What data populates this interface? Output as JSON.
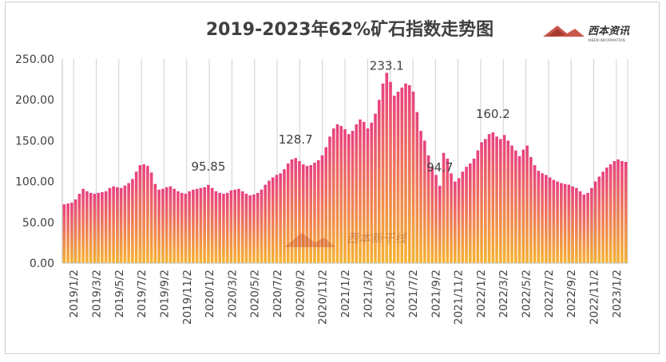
{
  "chart_data": {
    "type": "bar",
    "title": "2019-2023年62%矿石指数走势图",
    "logo_text": "西本资讯",
    "logo_subtext": "XIBEN INFORMATION",
    "watermark_text": "西本新干线",
    "ylim": [
      0,
      250
    ],
    "yticks": [
      "0.00",
      "50.00",
      "100.00",
      "150.00",
      "200.00",
      "250.00"
    ],
    "xticks": [
      "2019/1/2",
      "2019/3/2",
      "2019/5/2",
      "2019/7/2",
      "2019/9/2",
      "2019/11/2",
      "2020/1/2",
      "2020/3/2",
      "2020/5/2",
      "2020/7/2",
      "2020/9/2",
      "2020/11/2",
      "2021/1/2",
      "2021/3/2",
      "2021/5/2",
      "2021/7/2",
      "2021/9/2",
      "2021/11/2",
      "2022/1/2",
      "2022/3/2",
      "2022/5/2",
      "2022/7/2",
      "2022/9/2",
      "2022/11/2",
      "2023/1/2"
    ],
    "series": [
      {
        "values": [
          72,
          73,
          74,
          78,
          85,
          91,
          88,
          86,
          85,
          86,
          87,
          88,
          92,
          94,
          93,
          92,
          95,
          98,
          103,
          112,
          120,
          121,
          119,
          111,
          97,
          90,
          91,
          93,
          94,
          91,
          88,
          86,
          85,
          88,
          90,
          91,
          92,
          93,
          95.85,
          92,
          88,
          86,
          85,
          86,
          89,
          90,
          91,
          88,
          85,
          83,
          84,
          86,
          90,
          96,
          101,
          105,
          108,
          110,
          115,
          122,
          127,
          128.7,
          125,
          121,
          119,
          120,
          123,
          126,
          132,
          142,
          155,
          165,
          170,
          168,
          164,
          158,
          162,
          170,
          176,
          173,
          165,
          172,
          183,
          200,
          220,
          233.1,
          222,
          205,
          210,
          215,
          220,
          218,
          210,
          185,
          162,
          150,
          132,
          118,
          108,
          94.7,
          135,
          128,
          110,
          100,
          104,
          112,
          118,
          122,
          128,
          138,
          148,
          152,
          158,
          160.2,
          155,
          152,
          157,
          150,
          144,
          138,
          131,
          139,
          144,
          130,
          120,
          113,
          110,
          108,
          105,
          102,
          100,
          98,
          97,
          96,
          94,
          92,
          88,
          84,
          86,
          92,
          100,
          106,
          112,
          117,
          121,
          125,
          127,
          125,
          124
        ]
      }
    ],
    "annotations": [
      {
        "text": "95.85",
        "index": 38,
        "value": 95.85
      },
      {
        "text": "128.7",
        "index": 61,
        "value": 128.7
      },
      {
        "text": "233.1",
        "index": 85,
        "value": 233.1
      },
      {
        "text": "94.7",
        "index": 99,
        "value": 94.7
      },
      {
        "text": "160.2",
        "index": 113,
        "value": 160.2
      }
    ],
    "grid": "vertical",
    "colors": {
      "bar_top": "#e8407f",
      "bar_bottom": "#f5b331",
      "title": "#3f3f3f",
      "axis_text": "#404040",
      "grid": "#d0d0d0"
    }
  }
}
